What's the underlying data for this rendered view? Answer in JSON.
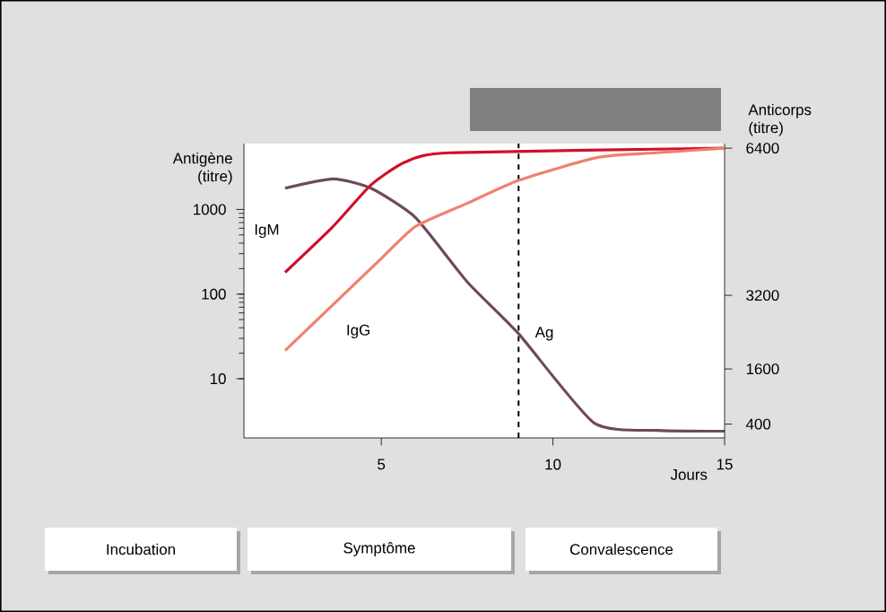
{
  "chart_data": {
    "type": "line",
    "xlabel": "Jours",
    "ylabel": "Antigène (titre)",
    "y2label": "Anticorps (titre)",
    "xlim": [
      1,
      15
    ],
    "xticks": [
      5,
      10,
      15
    ],
    "ylim": [
      2,
      6000
    ],
    "yticks": [
      10,
      100,
      1000
    ],
    "log": "y",
    "y2lim": [
      100,
      6500
    ],
    "y2ticks": [
      400,
      1600,
      3200,
      6400
    ],
    "grid": false,
    "marker": "none",
    "line_style": "solid",
    "series": [
      {
        "name": "Ag",
        "color": "#6e4a5a",
        "x": [
          2.2,
          3.6,
          4.7,
          6.0,
          7.5,
          9.0,
          11.2,
          13.05,
          15
        ],
        "values": [
          1780,
          2290,
          1780,
          800,
          140,
          34,
          3.0,
          2.45,
          2.4
        ]
      },
      {
        "name": "IgM",
        "color": "#d0102a",
        "axis": "y2",
        "x": [
          2.2,
          3.6,
          4.7,
          5.7,
          7.0,
          15
        ],
        "values": [
          3700,
          4700,
          5600,
          6100,
          6300,
          6400
        ]
      },
      {
        "name": "IgG",
        "color": "#f08070",
        "axis": "y2",
        "x": [
          2.2,
          3.6,
          5.0,
          6.0,
          7.5,
          9.0,
          11.3,
          13.0,
          15
        ],
        "values": [
          2000,
          3000,
          4000,
          4700,
          5200,
          5700,
          6200,
          6300,
          6400
        ]
      }
    ],
    "ref_lines": [
      {
        "axis": "x",
        "value": 9,
        "line_style": "dashed",
        "color": "#000000"
      }
    ],
    "annotations": [
      "Incubation",
      "Symptôme",
      "Convalescence"
    ]
  }
}
